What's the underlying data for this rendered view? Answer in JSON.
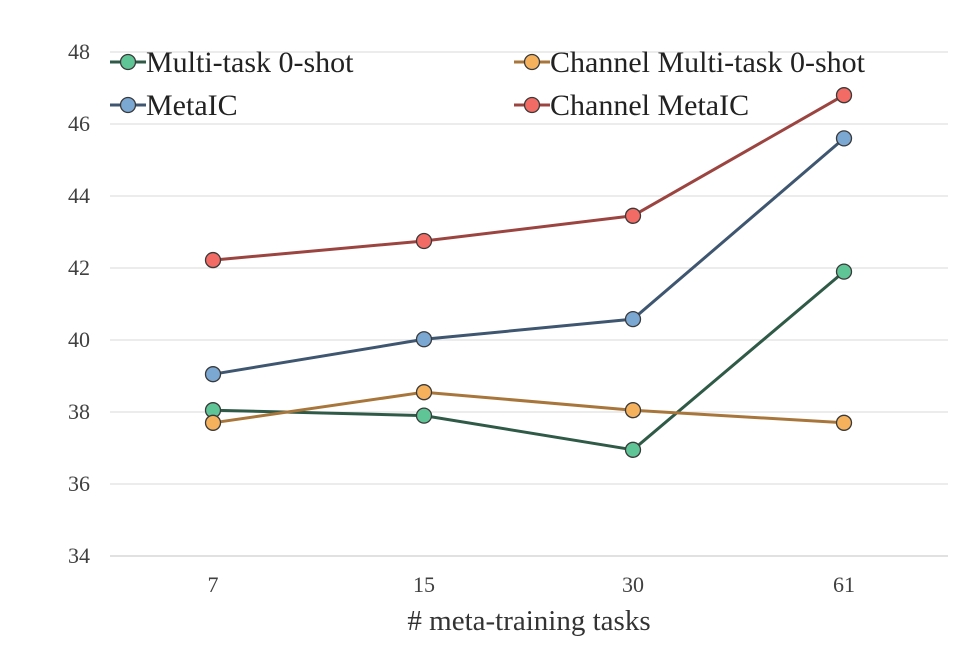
{
  "chart_data": {
    "type": "line",
    "title": "",
    "xlabel": "# meta-training tasks",
    "ylabel": "",
    "categories": [
      "7",
      "15",
      "30",
      "61"
    ],
    "ylim": [
      34,
      48
    ],
    "yticks": [
      34,
      36,
      38,
      40,
      42,
      44,
      46,
      48
    ],
    "grid": true,
    "legend_position": "top",
    "series": [
      {
        "name": "Multi-task 0-shot",
        "values": [
          38.05,
          37.9,
          36.95,
          41.9
        ],
        "line_color": "#2e5a47",
        "marker_color": "#5fc496"
      },
      {
        "name": "Channel Multi-task 0-shot",
        "values": [
          37.7,
          38.55,
          38.05,
          37.7
        ],
        "line_color": "#a8763a",
        "marker_color": "#f6b15c"
      },
      {
        "name": "MetaIC",
        "values": [
          39.05,
          40.02,
          40.58,
          45.6
        ],
        "line_color": "#3e5670",
        "marker_color": "#7ba7d3"
      },
      {
        "name": "Channel MetaIC",
        "values": [
          42.22,
          42.75,
          43.45,
          46.8
        ],
        "line_color": "#9c4440",
        "marker_color": "#f26b64"
      }
    ]
  }
}
